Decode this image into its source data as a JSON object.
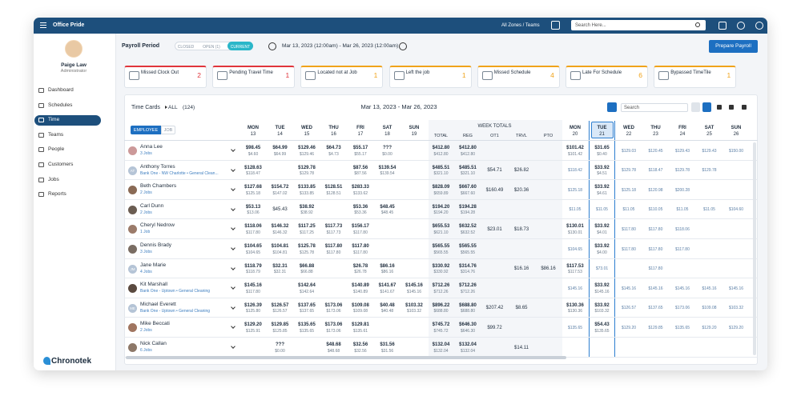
{
  "header": {
    "app_name": "Office Pride",
    "zone": "All Zones / Teams",
    "search": "Search Here..."
  },
  "user": {
    "name": "Paige Law",
    "role": "Administrator"
  },
  "nav": [
    "Dashboard",
    "Schedules",
    "Time",
    "Teams",
    "People",
    "Customers",
    "Jobs",
    "Reports"
  ],
  "brand": "Chronotek",
  "payroll": {
    "title": "Payroll Period",
    "tabs": [
      "CLOSED",
      "OPEN (1)",
      "CURRENT"
    ],
    "range": "Mar 13, 2023 (12:00am) - Mar 26, 2023 (12:00am)",
    "button": "Prepare Payroll"
  },
  "alerts": [
    {
      "label": "Missed Clock Out",
      "count": 2
    },
    {
      "label": "Pending Travel Time",
      "count": 1
    },
    {
      "label": "Located not at Job",
      "count": 1
    },
    {
      "label": "Left the job",
      "count": 1
    },
    {
      "label": "Missed Schedule",
      "count": 4
    },
    {
      "label": "Late For Schedule",
      "count": 6
    },
    {
      "label": "Bypassed TimeTile",
      "count": 1
    }
  ],
  "timecards": {
    "title": "Time Cards",
    "filter": "ALL",
    "count": "(124)",
    "range": "Mar 13, 2023 - Mar 26, 2023",
    "search": "Search",
    "toggle": [
      "EMPLOYEE",
      "JOB"
    ]
  },
  "columns": {
    "week1": [
      [
        "MON",
        13
      ],
      [
        "TUE",
        14
      ],
      [
        "WED",
        15
      ],
      [
        "THU",
        16
      ],
      [
        "FRI",
        17
      ],
      [
        "SAT",
        18
      ],
      [
        "SUN",
        19
      ]
    ],
    "week_totals": {
      "title": "WEEK TOTALS",
      "labels": [
        "TOTAL",
        "REG",
        "OT1",
        "TRVL",
        "PTO"
      ]
    },
    "week2": [
      [
        "MON",
        20
      ],
      [
        "TUE",
        21
      ],
      [
        "WED",
        22
      ],
      [
        "THU",
        23
      ],
      [
        "FRI",
        24
      ],
      [
        "SAT",
        25
      ],
      [
        "SUN",
        26
      ]
    ]
  },
  "rows": [
    {
      "name": "Anna Lee",
      "sub": "3 Jobs",
      "cells": [
        [
          "$98.45",
          "$4.60"
        ],
        [
          "$64.99",
          "$64.99"
        ],
        [
          "$129.46",
          "$129.46"
        ],
        [
          "$64.73",
          "$4.73"
        ],
        [
          "$55.17",
          "$55.17"
        ],
        [
          "???",
          "$0.00"
        ],
        null,
        [
          "$412.80",
          "$412.80"
        ],
        [
          "$412.80",
          "$412.80"
        ],
        null,
        null,
        null,
        [
          "$101.42",
          "$101.42"
        ],
        [
          "$31.65",
          "$0.40"
        ],
        [
          "$129.03"
        ],
        [
          "$120.45"
        ],
        [
          "$129.43"
        ],
        [
          "$129.43"
        ],
        [
          "$150.00"
        ]
      ]
    },
    {
      "name": "Anthony Torres",
      "initials": "AT",
      "sub": "Bank One - NW Charlotte • General Clean...",
      "cells": [
        [
          "$128.63",
          "$118.47"
        ],
        null,
        [
          "$129.78",
          "$129.78"
        ],
        null,
        [
          "$87.56",
          "$87.56"
        ],
        [
          "$139.54",
          "$139.54"
        ],
        null,
        [
          "$485.51",
          "$321.10"
        ],
        [
          "$485.51",
          "$321.10"
        ],
        [
          "$54.71"
        ],
        [
          "$26.82"
        ],
        null,
        [
          "$118.42"
        ],
        [
          "$33.92",
          "$4.51"
        ],
        [
          "$129.78"
        ],
        [
          "$118.47"
        ],
        [
          "$129.78"
        ],
        [
          "$129.78"
        ],
        null
      ]
    },
    {
      "name": "Beth Chambers",
      "sub": "2 Jobs",
      "cells": [
        [
          "$127.68",
          "$125.18"
        ],
        [
          "$154.72",
          "$147.02"
        ],
        [
          "$133.85",
          "$133.85"
        ],
        [
          "$128.51",
          "$128.51"
        ],
        [
          "$283.33",
          "$133.62"
        ],
        null,
        null,
        [
          "$828.09",
          "$659.89"
        ],
        [
          "$667.60",
          "$667.60"
        ],
        [
          "$160.49"
        ],
        [
          "$20.36"
        ],
        null,
        [
          "$125.18"
        ],
        [
          "$33.92",
          "$4.61"
        ],
        [
          "$125.18"
        ],
        [
          "$120.98"
        ],
        [
          "$200.28"
        ],
        null,
        null
      ]
    },
    {
      "name": "Carl Dunn",
      "sub": "2 Jobs",
      "cells": [
        [
          "$53.13",
          "$13.06"
        ],
        [
          "$45.43"
        ],
        [
          "$38.92",
          "$38.92"
        ],
        null,
        [
          "$53.36",
          "$53.36"
        ],
        [
          "$48.45",
          "$48.45"
        ],
        null,
        [
          "$194.20",
          "$194.20"
        ],
        [
          "$194.28",
          "$194.28"
        ],
        null,
        null,
        null,
        [
          "$11.05"
        ],
        [
          "$11.05"
        ],
        [
          "$11.05"
        ],
        [
          "$110.05"
        ],
        [
          "$11.05"
        ],
        [
          "$11.05"
        ],
        [
          "$104.60"
        ]
      ]
    },
    {
      "name": "Cheryl Nedrow",
      "sub": "1 Job",
      "cells": [
        [
          "$118.06",
          "$117.80"
        ],
        [
          "$146.32",
          "$146.32"
        ],
        [
          "$117.25",
          "$117.25"
        ],
        [
          "$117.73",
          "$117.73"
        ],
        [
          "$156.17",
          "$117.80"
        ],
        null,
        null,
        [
          "$655.53",
          "$621.10"
        ],
        [
          "$632.52",
          "$632.52"
        ],
        [
          "$23.01"
        ],
        [
          "$18.73"
        ],
        null,
        [
          "$130.01",
          "$130.01"
        ],
        [
          "$33.92",
          "$4.01"
        ],
        [
          "$117.80"
        ],
        [
          "$117.80"
        ],
        [
          "$118.06"
        ],
        null,
        null
      ]
    },
    {
      "name": "Dennis Brady",
      "sub": "3 Jobs",
      "cells": [
        [
          "$104.65",
          "$104.65"
        ],
        [
          "$104.81",
          "$104.81"
        ],
        [
          "$125.78",
          "$125.78"
        ],
        [
          "$117.80",
          "$117.80"
        ],
        [
          "$117.80",
          "$117.80"
        ],
        null,
        null,
        [
          "$565.55",
          "$565.55"
        ],
        [
          "$565.55",
          "$565.55"
        ],
        null,
        null,
        null,
        [
          "$104.65"
        ],
        [
          "$33.92",
          "$4.00"
        ],
        [
          "$117.80"
        ],
        [
          "$117.80"
        ],
        [
          "$117.80"
        ],
        null,
        null
      ]
    },
    {
      "name": "Jane Marie",
      "initials": "JM",
      "sub": "4 Jobs",
      "cells": [
        [
          "$118.79",
          "$118.79"
        ],
        [
          "$32.31",
          "$32.31"
        ],
        [
          "$66.88",
          "$66.88"
        ],
        null,
        [
          "$26.78",
          "$26.78"
        ],
        [
          "$86.16",
          "$86.16"
        ],
        null,
        [
          "$330.92",
          "$330.92"
        ],
        [
          "$314.76",
          "$314.76"
        ],
        null,
        [
          "$16.16"
        ],
        [
          "$86.16"
        ],
        [
          "$117.53",
          "$117.53"
        ],
        [
          "$73.01"
        ],
        null,
        [
          "$117.80"
        ],
        null,
        null,
        null
      ]
    },
    {
      "name": "Kit Marshall",
      "sub": "Bank One - Uptown • General Cleaning",
      "cells": [
        [
          "$145.16",
          "$117.80"
        ],
        null,
        [
          "$142.64",
          "$142.64"
        ],
        null,
        [
          "$140.89",
          "$140.89"
        ],
        [
          "$141.67",
          "$141.67"
        ],
        [
          "$145.16",
          "$145.16"
        ],
        [
          "$712.26",
          "$712.26"
        ],
        [
          "$712.26",
          "$712.26"
        ],
        null,
        null,
        null,
        [
          "$145.16"
        ],
        [
          "$33.92",
          "$145.16"
        ],
        [
          "$145.16"
        ],
        [
          "$145.16"
        ],
        [
          "$145.16"
        ],
        [
          "$145.16"
        ],
        [
          "$145.16"
        ]
      ]
    },
    {
      "name": "Michael Everett",
      "initials": "ME",
      "sub": "Bank One - Uptown • General Cleaning",
      "cells": [
        [
          "$126.39",
          "$125.80"
        ],
        [
          "$126.57",
          "$126.57"
        ],
        [
          "$137.65",
          "$137.65"
        ],
        [
          "$173.06",
          "$173.06"
        ],
        [
          "$109.08",
          "$109.08"
        ],
        [
          "$40.48",
          "$40.48"
        ],
        [
          "$103.32",
          "$103.32"
        ],
        [
          "$896.22",
          "$688.80"
        ],
        [
          "$688.80",
          "$688.80"
        ],
        [
          "$207.42"
        ],
        [
          "$8.65"
        ],
        null,
        [
          "$130.36",
          "$130.36"
        ],
        [
          "$33.92",
          "$103.32"
        ],
        [
          "$126.57"
        ],
        [
          "$137.65"
        ],
        [
          "$173.06"
        ],
        [
          "$109.08"
        ],
        [
          "$103.32"
        ]
      ]
    },
    {
      "name": "Mike Beccati",
      "sub": "2 Jobs",
      "cells": [
        [
          "$129.20",
          "$125.91"
        ],
        [
          "$129.85",
          "$125.85"
        ],
        [
          "$135.65",
          "$135.65"
        ],
        [
          "$173.06",
          "$173.06"
        ],
        [
          "$129.81",
          "$135.61"
        ],
        null,
        null,
        [
          "$745.72",
          "$745.72"
        ],
        [
          "$646.30",
          "$646.30"
        ],
        [
          "$99.72"
        ],
        null,
        null,
        [
          "$135.65"
        ],
        [
          "$54.43",
          "$135.65"
        ],
        [
          "$129.20"
        ],
        [
          "$129.85"
        ],
        [
          "$135.65"
        ],
        [
          "$129.20"
        ],
        [
          "$129.20"
        ]
      ]
    },
    {
      "name": "Nick Callan",
      "sub": "6 Jobs",
      "cells": [
        null,
        [
          "???",
          "$0.00"
        ],
        null,
        [
          "$48.68",
          "$48.68"
        ],
        [
          "$32.56",
          "$32.56"
        ],
        [
          "$31.56",
          "$31.56"
        ],
        null,
        [
          "$132.04",
          "$132.04"
        ],
        [
          "$132.04",
          "$132.04"
        ],
        null,
        [
          "$14.11"
        ],
        null,
        null,
        null,
        null,
        null,
        null,
        null,
        null
      ]
    }
  ]
}
